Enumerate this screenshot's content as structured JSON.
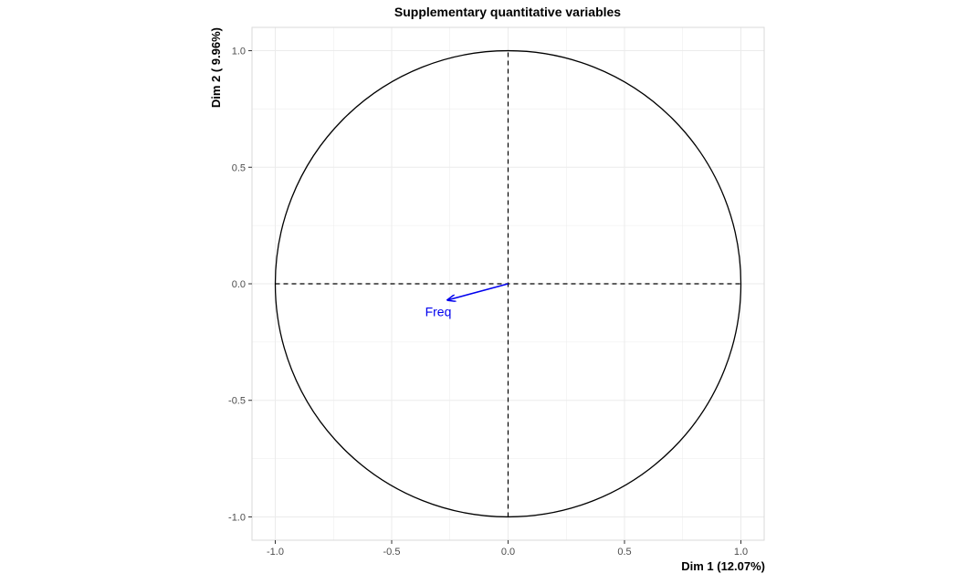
{
  "chart_data": {
    "type": "scatter",
    "subtype": "correlation-circle",
    "title": "Supplementary quantitative variables",
    "xlabel": "Dim 1 (12.07%)",
    "ylabel": "Dim 2 ( 9.96%)",
    "xlim": [
      -1.1,
      1.1
    ],
    "ylim": [
      -1.1,
      1.1
    ],
    "x_ticks": [
      -1.0,
      -0.5,
      0.0,
      0.5,
      1.0
    ],
    "y_ticks": [
      -1.0,
      -0.5,
      0.0,
      0.5,
      1.0
    ],
    "x_tick_labels": [
      "-1.0",
      "-0.5",
      "0.0",
      "0.5",
      "1.0"
    ],
    "y_tick_labels": [
      "-1.0",
      "-0.5",
      "0.0",
      "0.5",
      "1.0"
    ],
    "grid": true,
    "unit_circle_radius": 1.0,
    "reference_lines": [
      {
        "axis": "x",
        "value": 0.0,
        "style": "dashed"
      },
      {
        "axis": "y",
        "value": 0.0,
        "style": "dashed"
      }
    ],
    "arrows": [
      {
        "name": "Freq",
        "x": -0.26,
        "y": -0.07,
        "label_x": -0.3,
        "label_y": -0.12,
        "color": "#0000ee"
      }
    ],
    "colors": {
      "circle": "#000000",
      "grid": "#ebebeb",
      "panel_border": "#d9d9d9",
      "arrow": "#0000ee"
    }
  }
}
